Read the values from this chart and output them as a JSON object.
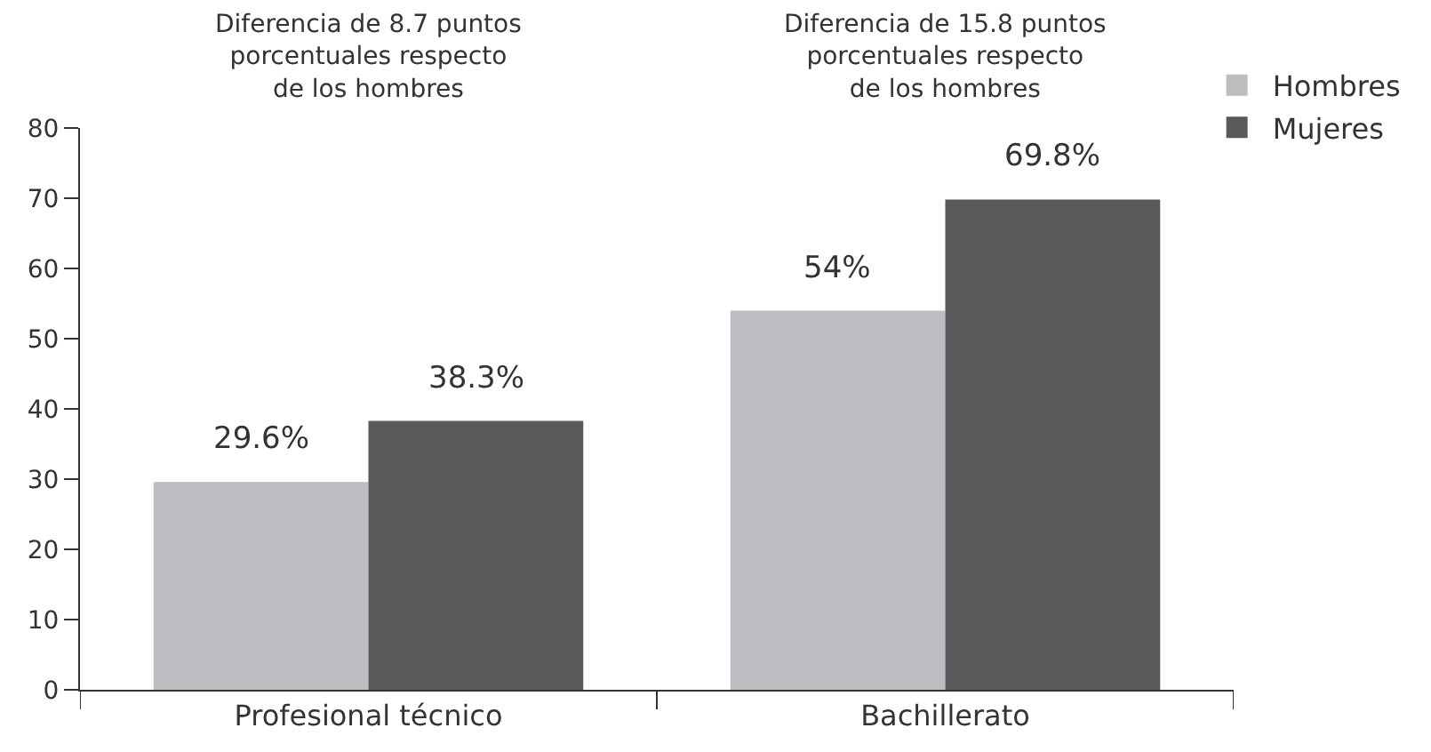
{
  "chart_data": {
    "type": "bar",
    "categories": [
      "Profesional técnico",
      "Bachillerato"
    ],
    "series": [
      {
        "name": "Hombres",
        "color": "#bcbdc0",
        "values": [
          29.6,
          54
        ],
        "value_labels": [
          "29.6%",
          "54%"
        ]
      },
      {
        "name": "Mujeres",
        "color": "#58595b",
        "values": [
          38.3,
          69.8
        ],
        "value_labels": [
          "38.3%",
          "69.8%"
        ]
      }
    ],
    "ylim": [
      0,
      80
    ],
    "yticks": [
      0,
      10,
      20,
      30,
      40,
      50,
      60,
      70,
      80
    ],
    "annotations": [
      "Diferencia de 8.7 puntos\nporcentuales respecto\nde los hombres",
      "Diferencia de 15.8 puntos\nporcentuales respecto\nde los hombres"
    ],
    "legend": "top right"
  }
}
